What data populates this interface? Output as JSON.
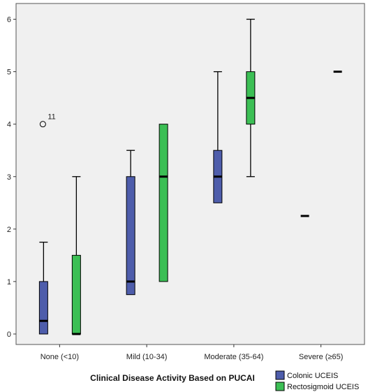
{
  "chart_data": {
    "type": "boxplot",
    "xlabel": "Clinical Disease Activity Based on PUCAI",
    "ylabel": "",
    "ylim": [
      -0.2,
      6.3
    ],
    "yticks": [
      0,
      1,
      2,
      3,
      4,
      5,
      6
    ],
    "categories": [
      "None (<10)",
      "Mild (10-34)",
      "Moderate (35-64)",
      "Severe (≥65)"
    ],
    "grid": false,
    "legend_position": "bottom-right",
    "series": [
      {
        "name": "Colonic UCEIS",
        "color": "#4e5dab",
        "boxes": [
          {
            "min": 0,
            "q1": 0,
            "median": 0.25,
            "q3": 1,
            "max": 1.75
          },
          {
            "min": 0.75,
            "q1": 0.75,
            "median": 1,
            "q3": 3,
            "max": 3.5
          },
          {
            "min": 2.5,
            "q1": 2.5,
            "median": 3,
            "q3": 3.5,
            "max": 5
          },
          {
            "min": 2.25,
            "q1": 2.25,
            "median": 2.25,
            "q3": 2.25,
            "max": 2.25
          }
        ]
      },
      {
        "name": "Rectosigmoid UCEIS",
        "color": "#3cbf55",
        "boxes": [
          {
            "min": 0,
            "q1": 0,
            "median": 0,
            "q3": 1.5,
            "max": 3,
            "outliers": [
              {
                "value": 4,
                "label": "11"
              }
            ]
          },
          {
            "min": 1,
            "q1": 1,
            "median": 3,
            "q3": 4,
            "max": 4
          },
          {
            "min": 3,
            "q1": 4,
            "median": 4.5,
            "q3": 5,
            "max": 6
          },
          {
            "min": 5,
            "q1": 5,
            "median": 5,
            "q3": 5,
            "max": 5
          }
        ]
      }
    ]
  }
}
